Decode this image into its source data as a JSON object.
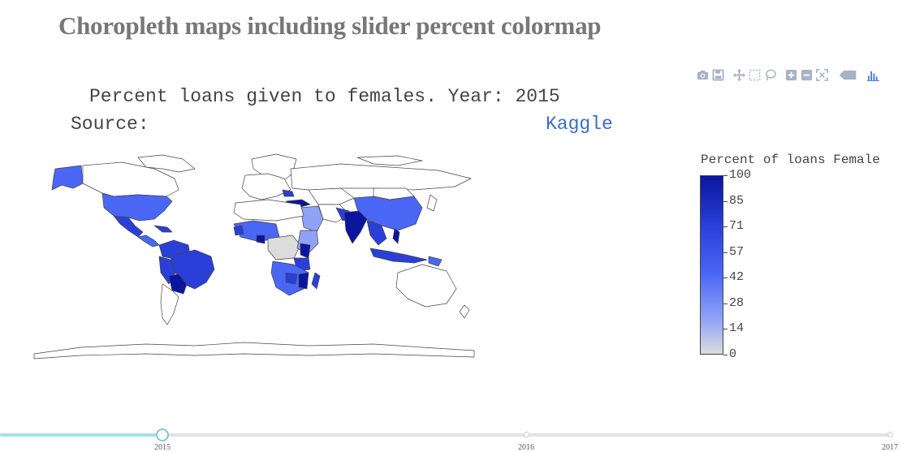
{
  "page": {
    "heading": "Choropleth maps including slider percent colormap"
  },
  "modebar": {
    "color": "#a9b2c4",
    "active_color": "#447adb",
    "buttons": [
      "camera-icon",
      "save-icon",
      "pan-icon",
      "box-select-icon",
      "lasso-icon",
      "zoom-in-icon",
      "zoom-out-icon",
      "reset-icon",
      "hover-closest-icon",
      "plotly-logo-icon"
    ]
  },
  "plot": {
    "title": "Percent loans given to females. Year: 2015",
    "source_label": "Source:",
    "source_link": "Kaggle",
    "link_color": "#3b6ec4"
  },
  "colorbar": {
    "title": "Percent of loans Female",
    "ticks": [
      "100",
      "85",
      "71",
      "57",
      "42",
      "28",
      "14",
      "0"
    ],
    "colors": [
      "#0a15a0",
      "#2a3fd8",
      "#4a66f5",
      "#8fa2f7",
      "#dcdcdc"
    ]
  },
  "slider": {
    "steps": [
      "2015",
      "2016",
      "2017"
    ],
    "active": "2015",
    "active_color": "#a4e1ea"
  }
}
